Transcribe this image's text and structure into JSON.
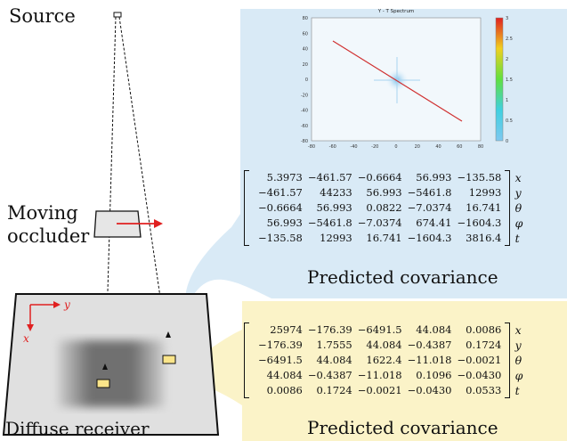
{
  "labels": {
    "source": "Source",
    "occluder_line1": "Moving",
    "occluder_line2": "occluder",
    "receiver": "Diffuse receiver",
    "axis_y": "y",
    "axis_x": "x"
  },
  "colors": {
    "blue_panel": "#d9eaf6",
    "yellow_panel": "#fbf3c8",
    "arrow_red": "#e02020",
    "occluder_fill": "#e6e6e6",
    "receiver_fill": "#e0e0e0"
  },
  "spectrum": {
    "title": "Y - T Spectrum",
    "x_ticks": [
      "-80",
      "-60",
      "-40",
      "-20",
      "0",
      "20",
      "40",
      "60",
      "80"
    ],
    "y_ticks": [
      "80",
      "60",
      "40",
      "20",
      "0",
      "-20",
      "-40",
      "-60",
      "-80"
    ],
    "colorbar_ticks": [
      "3",
      "2.5",
      "2",
      "1.5",
      "1",
      "0.5",
      "0"
    ]
  },
  "covariance_top": {
    "caption": "Predicted covariance",
    "rows": [
      [
        "5.3973",
        "−461.57",
        "−0.6664",
        "56.993",
        "−135.58"
      ],
      [
        "−461.57",
        "44233",
        "56.993",
        "−5461.8",
        "12993"
      ],
      [
        "−0.6664",
        "56.993",
        "0.0822",
        "−7.0374",
        "16.741"
      ],
      [
        "56.993",
        "−5461.8",
        "−7.0374",
        "674.41",
        "−1604.3"
      ],
      [
        "−135.58",
        "12993",
        "16.741",
        "−1604.3",
        "3816.4"
      ]
    ],
    "vars": [
      "x",
      "y",
      "θ",
      "φ",
      "t"
    ]
  },
  "covariance_bottom": {
    "caption": "Predicted covariance",
    "rows": [
      [
        "25974",
        "−176.39",
        "−6491.5",
        "44.084",
        "0.0086"
      ],
      [
        "−176.39",
        "1.7555",
        "44.084",
        "−0.4387",
        "0.1724"
      ],
      [
        "−6491.5",
        "44.084",
        "1622.4",
        "−11.018",
        "−0.0021"
      ],
      [
        "44.084",
        "−0.4387",
        "−11.018",
        "0.1096",
        "−0.0430"
      ],
      [
        "0.0086",
        "0.1724",
        "−0.0021",
        "−0.0430",
        "0.0533"
      ]
    ],
    "vars": [
      "x",
      "y",
      "θ",
      "φ",
      "t"
    ]
  }
}
